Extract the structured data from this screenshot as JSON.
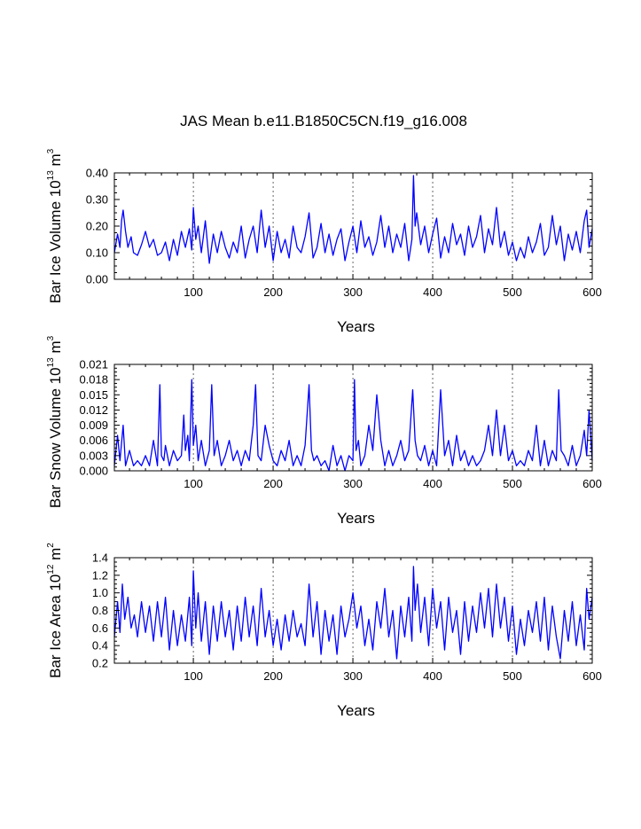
{
  "title": "JAS Mean b.e11.B1850C5CN.f19_g16.008",
  "colors": {
    "series": "#0000ff",
    "axis": "#000000",
    "background": "#ffffff"
  },
  "chart_data": [
    {
      "type": "line",
      "id": "ice-volume",
      "xlabel": "Years",
      "ylabel": {
        "main": "Bar Ice Volume 10",
        "exp": "13",
        "unit": " m",
        "unit_exp": "3"
      },
      "xlim": [
        1,
        600
      ],
      "ylim": [
        0,
        0.4
      ],
      "xticks": [
        100,
        200,
        300,
        400,
        500,
        600
      ],
      "yticks": [
        0.0,
        0.1,
        0.2,
        0.3,
        0.4
      ],
      "ytick_labels": [
        "0.00",
        "0.10",
        "0.20",
        "0.30",
        "0.40"
      ],
      "grid_x": [
        100,
        200,
        300,
        400,
        500
      ],
      "series": [
        {
          "name": "Bar Ice Volume",
          "x": [
            1,
            5,
            8,
            10,
            12,
            15,
            18,
            22,
            25,
            30,
            35,
            40,
            45,
            50,
            55,
            60,
            65,
            70,
            75,
            80,
            85,
            90,
            95,
            98,
            100,
            103,
            106,
            110,
            115,
            120,
            125,
            130,
            135,
            140,
            145,
            150,
            155,
            160,
            165,
            170,
            175,
            180,
            185,
            190,
            195,
            200,
            205,
            210,
            215,
            220,
            225,
            230,
            235,
            240,
            245,
            250,
            255,
            260,
            265,
            270,
            275,
            280,
            285,
            290,
            295,
            300,
            305,
            310,
            315,
            320,
            325,
            330,
            335,
            340,
            345,
            350,
            355,
            360,
            365,
            370,
            374,
            376,
            378,
            380,
            385,
            390,
            395,
            400,
            405,
            410,
            415,
            420,
            425,
            430,
            435,
            440,
            445,
            450,
            455,
            460,
            465,
            470,
            475,
            480,
            485,
            490,
            495,
            500,
            505,
            510,
            515,
            520,
            525,
            530,
            535,
            540,
            545,
            550,
            555,
            560,
            565,
            570,
            575,
            580,
            585,
            590,
            593,
            596,
            600
          ],
          "values": [
            0.1,
            0.17,
            0.12,
            0.22,
            0.26,
            0.18,
            0.12,
            0.16,
            0.1,
            0.09,
            0.13,
            0.18,
            0.12,
            0.15,
            0.09,
            0.1,
            0.14,
            0.07,
            0.15,
            0.09,
            0.18,
            0.12,
            0.19,
            0.11,
            0.27,
            0.15,
            0.2,
            0.1,
            0.22,
            0.06,
            0.17,
            0.1,
            0.18,
            0.12,
            0.08,
            0.14,
            0.1,
            0.2,
            0.08,
            0.15,
            0.2,
            0.1,
            0.26,
            0.12,
            0.2,
            0.07,
            0.18,
            0.1,
            0.15,
            0.08,
            0.2,
            0.12,
            0.1,
            0.16,
            0.25,
            0.08,
            0.12,
            0.21,
            0.1,
            0.17,
            0.09,
            0.15,
            0.19,
            0.07,
            0.14,
            0.2,
            0.1,
            0.22,
            0.12,
            0.16,
            0.09,
            0.14,
            0.24,
            0.12,
            0.2,
            0.1,
            0.17,
            0.12,
            0.21,
            0.07,
            0.15,
            0.39,
            0.2,
            0.25,
            0.13,
            0.2,
            0.1,
            0.17,
            0.23,
            0.08,
            0.16,
            0.1,
            0.21,
            0.13,
            0.17,
            0.09,
            0.2,
            0.12,
            0.16,
            0.24,
            0.1,
            0.19,
            0.13,
            0.27,
            0.12,
            0.18,
            0.09,
            0.14,
            0.07,
            0.12,
            0.08,
            0.16,
            0.1,
            0.14,
            0.21,
            0.09,
            0.12,
            0.24,
            0.13,
            0.2,
            0.07,
            0.17,
            0.11,
            0.18,
            0.1,
            0.22,
            0.26,
            0.12,
            0.19
          ]
        }
      ]
    },
    {
      "type": "line",
      "id": "snow-volume",
      "xlabel": "Years",
      "ylabel": {
        "main": "Bar Snow Volume 10",
        "exp": "13",
        "unit": " m",
        "unit_exp": "3"
      },
      "xlim": [
        1,
        600
      ],
      "ylim": [
        0,
        0.021
      ],
      "xticks": [
        100,
        200,
        300,
        400,
        500,
        600
      ],
      "yticks": [
        0.0,
        0.003,
        0.006,
        0.009,
        0.012,
        0.015,
        0.018,
        0.021
      ],
      "ytick_labels": [
        "0.000",
        "0.003",
        "0.006",
        "0.009",
        "0.012",
        "0.015",
        "0.018",
        "0.021"
      ],
      "grid_x": [
        100,
        200,
        300,
        400,
        500
      ],
      "series": [
        {
          "name": "Bar Snow Volume",
          "x": [
            1,
            5,
            8,
            12,
            15,
            20,
            25,
            30,
            35,
            40,
            45,
            50,
            55,
            58,
            60,
            63,
            65,
            70,
            75,
            80,
            85,
            88,
            90,
            93,
            95,
            98,
            100,
            103,
            106,
            110,
            115,
            120,
            123,
            126,
            130,
            135,
            140,
            145,
            150,
            155,
            160,
            165,
            170,
            175,
            178,
            181,
            185,
            190,
            195,
            200,
            205,
            210,
            215,
            220,
            225,
            230,
            235,
            240,
            245,
            248,
            251,
            255,
            260,
            265,
            270,
            275,
            280,
            285,
            290,
            295,
            300,
            302,
            304,
            307,
            310,
            315,
            320,
            325,
            330,
            335,
            340,
            345,
            350,
            355,
            360,
            365,
            370,
            375,
            378,
            381,
            385,
            390,
            395,
            400,
            405,
            410,
            415,
            420,
            425,
            430,
            435,
            440,
            445,
            450,
            455,
            460,
            465,
            470,
            475,
            480,
            485,
            490,
            495,
            500,
            505,
            510,
            515,
            520,
            525,
            530,
            535,
            540,
            545,
            550,
            555,
            558,
            561,
            565,
            570,
            575,
            580,
            585,
            590,
            593,
            596,
            600
          ],
          "values": [
            0.001,
            0.007,
            0.002,
            0.009,
            0.001,
            0.004,
            0.001,
            0.002,
            0.001,
            0.003,
            0.001,
            0.006,
            0.001,
            0.017,
            0.003,
            0.002,
            0.005,
            0.001,
            0.004,
            0.002,
            0.003,
            0.011,
            0.004,
            0.007,
            0.002,
            0.018,
            0.005,
            0.009,
            0.002,
            0.006,
            0.001,
            0.004,
            0.017,
            0.003,
            0.006,
            0.001,
            0.003,
            0.006,
            0.002,
            0.004,
            0.001,
            0.004,
            0.002,
            0.009,
            0.017,
            0.003,
            0.002,
            0.009,
            0.005,
            0.002,
            0.001,
            0.004,
            0.002,
            0.006,
            0.001,
            0.003,
            0.001,
            0.005,
            0.017,
            0.004,
            0.002,
            0.003,
            0.001,
            0.002,
            0.0,
            0.005,
            0.001,
            0.003,
            0.0,
            0.003,
            0.002,
            0.018,
            0.004,
            0.006,
            0.001,
            0.003,
            0.009,
            0.004,
            0.015,
            0.006,
            0.001,
            0.004,
            0.001,
            0.003,
            0.006,
            0.002,
            0.004,
            0.016,
            0.006,
            0.003,
            0.002,
            0.005,
            0.001,
            0.004,
            0.001,
            0.016,
            0.003,
            0.006,
            0.001,
            0.007,
            0.002,
            0.004,
            0.001,
            0.003,
            0.001,
            0.002,
            0.004,
            0.009,
            0.003,
            0.012,
            0.003,
            0.009,
            0.002,
            0.004,
            0.001,
            0.002,
            0.001,
            0.004,
            0.002,
            0.009,
            0.001,
            0.006,
            0.001,
            0.004,
            0.002,
            0.016,
            0.004,
            0.003,
            0.001,
            0.005,
            0.001,
            0.003,
            0.008,
            0.003,
            0.012,
            0.002
          ]
        }
      ]
    },
    {
      "type": "line",
      "id": "ice-area",
      "xlabel": "Years",
      "ylabel": {
        "main": "Bar Ice Area 10",
        "exp": "12",
        "unit": " m",
        "unit_exp": "2"
      },
      "xlim": [
        1,
        600
      ],
      "ylim": [
        0.2,
        1.4
      ],
      "xticks": [
        100,
        200,
        300,
        400,
        500,
        600
      ],
      "yticks": [
        0.2,
        0.4,
        0.6,
        0.8,
        1.0,
        1.2,
        1.4
      ],
      "ytick_labels": [
        "0.2",
        "0.4",
        "0.6",
        "0.8",
        "1.0",
        "1.2",
        "1.4"
      ],
      "grid_x": [
        100,
        200,
        300,
        400,
        500
      ],
      "series": [
        {
          "name": "Bar Ice Area",
          "x": [
            1,
            5,
            8,
            11,
            14,
            18,
            22,
            26,
            30,
            35,
            40,
            45,
            50,
            55,
            60,
            65,
            70,
            75,
            80,
            85,
            90,
            95,
            98,
            100,
            103,
            106,
            110,
            115,
            120,
            125,
            130,
            135,
            140,
            145,
            150,
            155,
            160,
            165,
            170,
            175,
            180,
            185,
            190,
            195,
            200,
            205,
            210,
            215,
            220,
            225,
            230,
            235,
            240,
            245,
            250,
            255,
            260,
            265,
            270,
            275,
            280,
            285,
            290,
            295,
            300,
            305,
            310,
            315,
            320,
            325,
            330,
            335,
            340,
            345,
            350,
            355,
            360,
            365,
            370,
            374,
            376,
            378,
            381,
            385,
            390,
            395,
            400,
            405,
            410,
            415,
            420,
            425,
            430,
            435,
            440,
            445,
            450,
            455,
            460,
            465,
            470,
            475,
            480,
            485,
            490,
            495,
            500,
            505,
            510,
            515,
            520,
            525,
            530,
            535,
            540,
            545,
            550,
            555,
            560,
            565,
            570,
            575,
            580,
            585,
            590,
            593,
            596,
            600
          ],
          "values": [
            0.5,
            0.9,
            0.55,
            1.1,
            0.7,
            0.95,
            0.6,
            0.75,
            0.5,
            0.9,
            0.55,
            0.85,
            0.45,
            0.9,
            0.5,
            0.95,
            0.35,
            0.8,
            0.4,
            0.75,
            0.45,
            0.95,
            0.4,
            1.25,
            0.6,
            1.0,
            0.45,
            0.9,
            0.3,
            0.85,
            0.45,
            0.9,
            0.5,
            0.8,
            0.35,
            0.85,
            0.45,
            0.95,
            0.5,
            0.85,
            0.4,
            1.05,
            0.5,
            0.8,
            0.4,
            0.7,
            0.35,
            0.75,
            0.45,
            0.8,
            0.5,
            0.65,
            0.4,
            1.1,
            0.5,
            0.9,
            0.3,
            0.8,
            0.45,
            0.75,
            0.3,
            0.85,
            0.5,
            0.7,
            1.0,
            0.6,
            0.85,
            0.4,
            0.7,
            0.35,
            0.9,
            0.6,
            1.05,
            0.5,
            0.8,
            0.25,
            0.85,
            0.5,
            0.95,
            0.45,
            1.3,
            0.8,
            1.1,
            0.55,
            0.95,
            0.4,
            1.05,
            0.6,
            0.9,
            0.35,
            0.95,
            0.55,
            0.8,
            0.3,
            0.9,
            0.45,
            0.85,
            0.55,
            1.0,
            0.6,
            1.05,
            0.5,
            1.1,
            0.6,
            0.95,
            0.45,
            0.85,
            0.3,
            0.7,
            0.4,
            0.8,
            0.55,
            0.9,
            0.45,
            0.95,
            0.35,
            0.85,
            0.5,
            0.25,
            0.8,
            0.45,
            0.9,
            0.4,
            0.75,
            0.35,
            1.05,
            0.7,
            0.95
          ]
        }
      ]
    }
  ]
}
